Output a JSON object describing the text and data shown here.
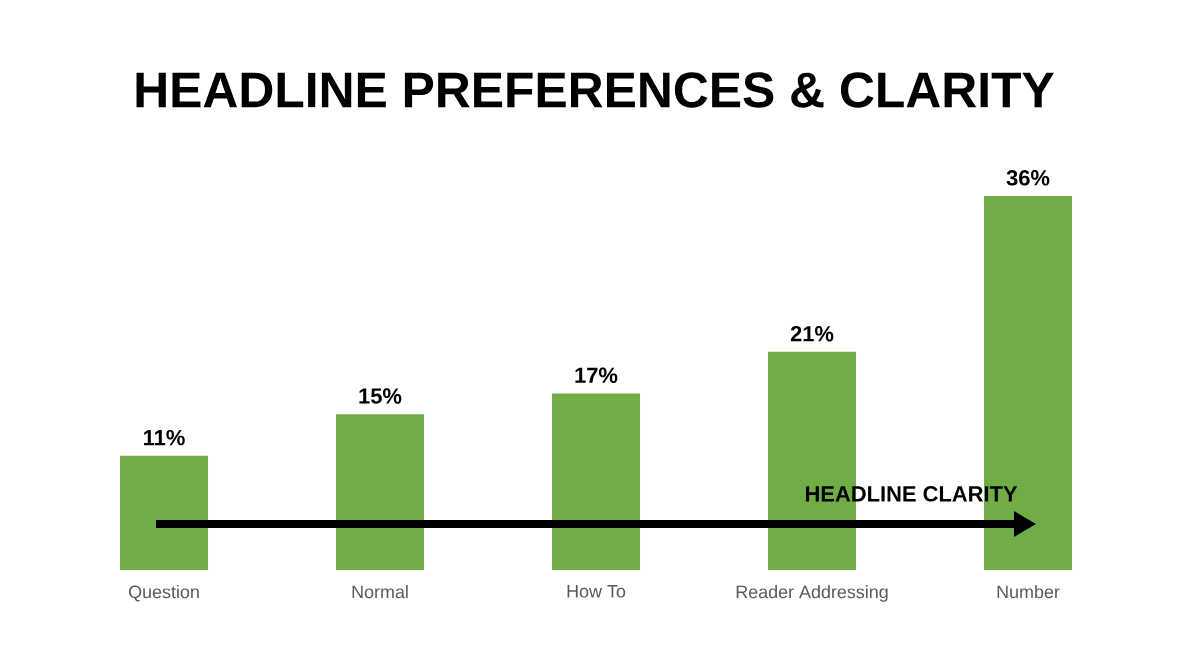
{
  "chart_data": {
    "type": "bar",
    "title": "HEADLINE PREFERENCES & CLARITY",
    "categories": [
      "Question",
      "Normal",
      "How To",
      "Reader Addressing",
      "Number"
    ],
    "values": [
      11,
      15,
      17,
      21,
      36
    ],
    "value_labels": [
      "11%",
      "15%",
      "17%",
      "21%",
      "36%"
    ],
    "color": "#70ad47",
    "annotations": [
      "HEADLINE CLARITY"
    ]
  }
}
